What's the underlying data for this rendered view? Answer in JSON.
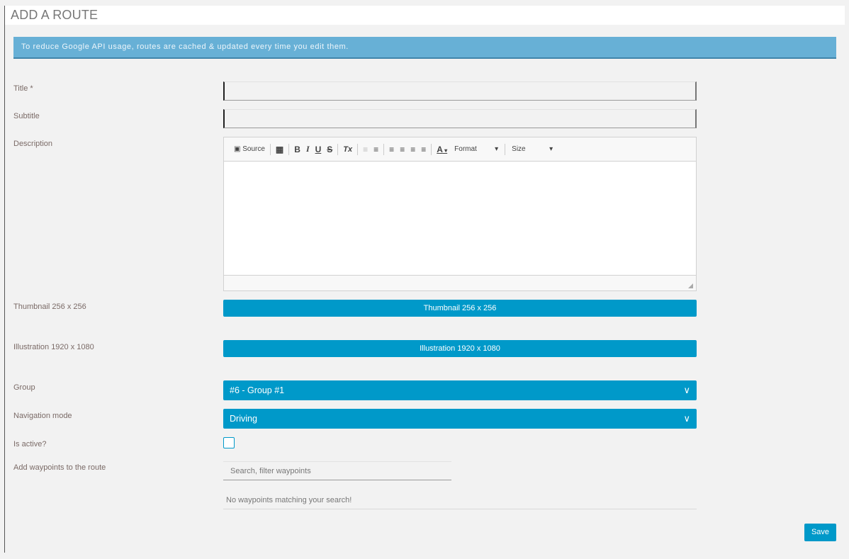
{
  "header": {
    "title": "ADD A ROUTE"
  },
  "alert": {
    "text": "To reduce Google API usage, routes are cached & updated every time you edit them."
  },
  "form": {
    "title_label": "Title *",
    "subtitle_label": "Subtitle",
    "description_label": "Description",
    "thumbnail_label": "Thumbnail 256 x 256",
    "thumbnail_button": "Thumbnail 256 x 256",
    "illustration_label": "Illustration 1920 x 1080",
    "illustration_button": "Illustration 1920 x 1080",
    "group_label": "Group",
    "group_value": "#6 - Group #1",
    "navigation_label": "Navigation mode",
    "navigation_value": "Driving",
    "active_label": "Is active?",
    "is_active": false,
    "waypoints_label": "Add waypoints to the route",
    "waypoints_placeholder": "Search, filter waypoints",
    "waypoints_empty": "No waypoints matching your search!",
    "save_label": "Save"
  },
  "editor": {
    "source_label": "Source",
    "format_label": "Format",
    "size_label": "Size",
    "buttons": {
      "bold": "B",
      "italic": "I",
      "underline": "U",
      "strike": "S",
      "clear": "Tx",
      "color": "A"
    }
  },
  "colors": {
    "accent": "#0099c9",
    "alert": "#67b0d6"
  }
}
